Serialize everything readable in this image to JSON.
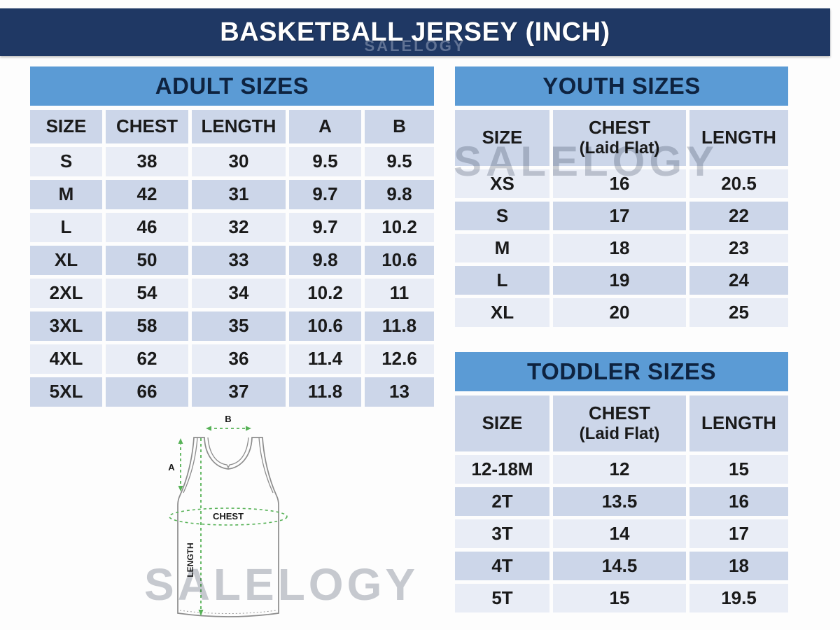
{
  "banner": {
    "title": "BASKETBALL JERSEY (INCH)",
    "bg": "#1f3864",
    "text_color": "#ffffff"
  },
  "watermark": {
    "text": "SALELOGY"
  },
  "colors": {
    "section_header_bg": "#5b9bd5",
    "section_header_text": "#0e2340",
    "row_light": "#e9edf6",
    "row_dark": "#ccd6e9",
    "cell_text": "#1a1a1a",
    "diagram_outline": "#8c8c8c",
    "diagram_arrow_green": "#57b257"
  },
  "adult_table": {
    "title": "ADULT SIZES",
    "columns": [
      {
        "label": "SIZE"
      },
      {
        "label": "CHEST"
      },
      {
        "label": "LENGTH"
      },
      {
        "label": "A"
      },
      {
        "label": "B"
      }
    ],
    "rows": [
      [
        "S",
        "38",
        "30",
        "9.5",
        "9.5"
      ],
      [
        "M",
        "42",
        "31",
        "9.7",
        "9.8"
      ],
      [
        "L",
        "46",
        "32",
        "9.7",
        "10.2"
      ],
      [
        "XL",
        "50",
        "33",
        "9.8",
        "10.6"
      ],
      [
        "2XL",
        "54",
        "34",
        "10.2",
        "11"
      ],
      [
        "3XL",
        "58",
        "35",
        "10.6",
        "11.8"
      ],
      [
        "4XL",
        "62",
        "36",
        "11.4",
        "12.6"
      ],
      [
        "5XL",
        "66",
        "37",
        "11.8",
        "13"
      ]
    ]
  },
  "youth_table": {
    "title": "YOUTH SIZES",
    "columns": [
      {
        "label": "SIZE"
      },
      {
        "label": "CHEST",
        "sub": "(Laid Flat)"
      },
      {
        "label": "LENGTH"
      }
    ],
    "rows": [
      [
        "XS",
        "16",
        "20.5"
      ],
      [
        "S",
        "17",
        "22"
      ],
      [
        "M",
        "18",
        "23"
      ],
      [
        "L",
        "19",
        "24"
      ],
      [
        "XL",
        "20",
        "25"
      ]
    ]
  },
  "toddler_table": {
    "title": "TODDLER SIZES",
    "columns": [
      {
        "label": "SIZE"
      },
      {
        "label": "CHEST",
        "sub": "(Laid Flat)"
      },
      {
        "label": "LENGTH"
      }
    ],
    "rows": [
      [
        "12-18M",
        "12",
        "15"
      ],
      [
        "2T",
        "13.5",
        "16"
      ],
      [
        "3T",
        "14",
        "17"
      ],
      [
        "4T",
        "14.5",
        "18"
      ],
      [
        "5T",
        "15",
        "19.5"
      ]
    ]
  },
  "diagram": {
    "label_a": "A",
    "label_b": "B",
    "label_chest": "CHEST",
    "label_length": "LENGTH"
  }
}
